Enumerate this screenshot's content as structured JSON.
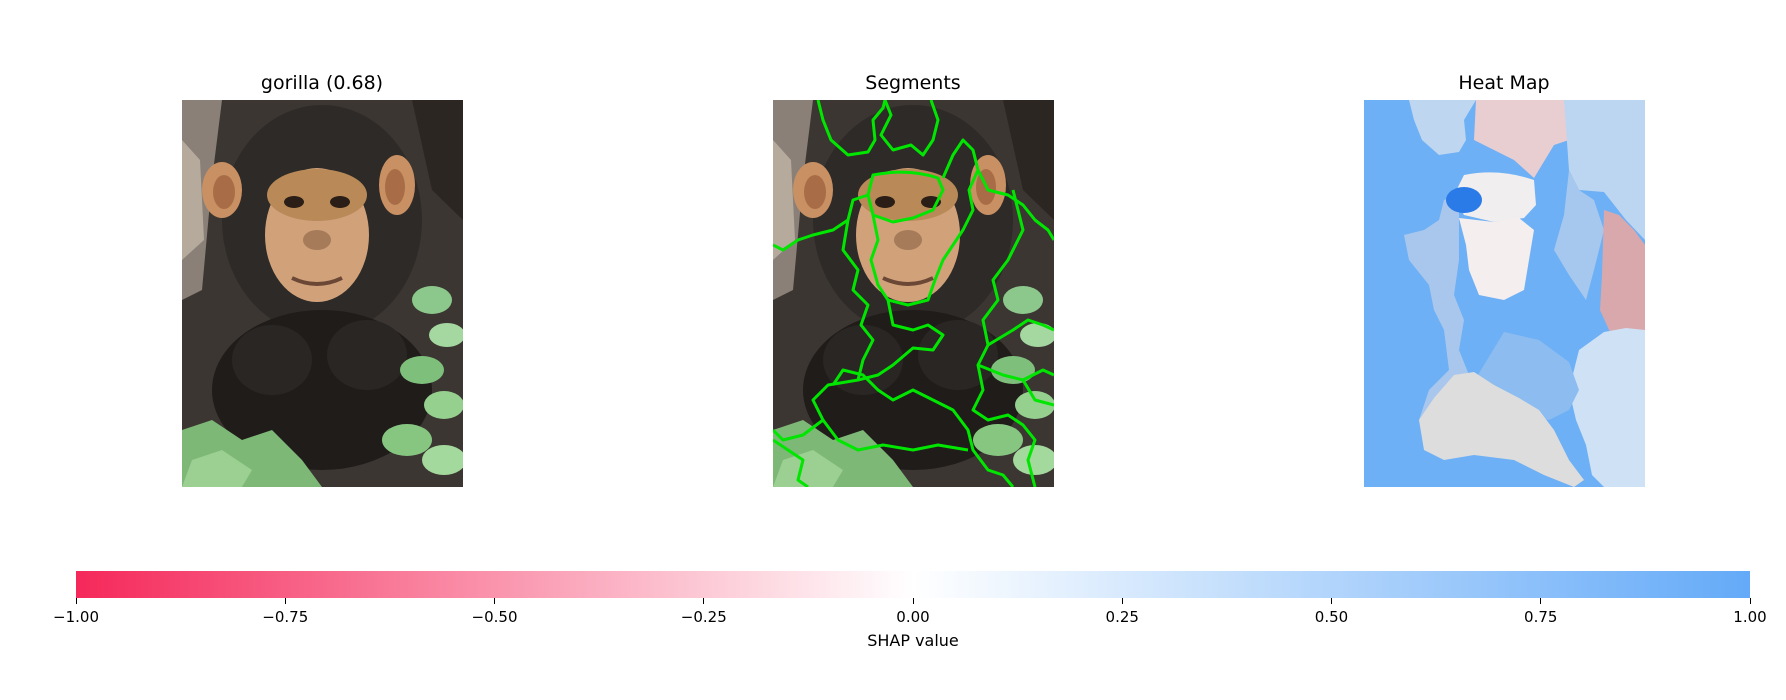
{
  "chart_data": {
    "type": "heatmap",
    "panels": [
      {
        "title": "gorilla (0.68)",
        "content": "original-image"
      },
      {
        "title": "Segments",
        "content": "segment-outlines"
      },
      {
        "title": "Heat Map",
        "content": "shap-heatmap"
      }
    ],
    "colorbar": {
      "label": "SHAP value",
      "range": [
        -1.0,
        1.0
      ],
      "ticks": [
        -1.0,
        -0.75,
        -0.5,
        -0.25,
        0.0,
        0.25,
        0.5,
        0.75,
        1.0
      ],
      "tick_labels": [
        "−1.00",
        "−0.75",
        "−0.50",
        "−0.25",
        "0.00",
        "0.25",
        "0.50",
        "0.75",
        "1.00"
      ],
      "colors": {
        "negative": "#f5285a",
        "zero": "#ffffff",
        "positive": "#64aaf8"
      }
    },
    "segment_outline_color": "#00e600"
  }
}
